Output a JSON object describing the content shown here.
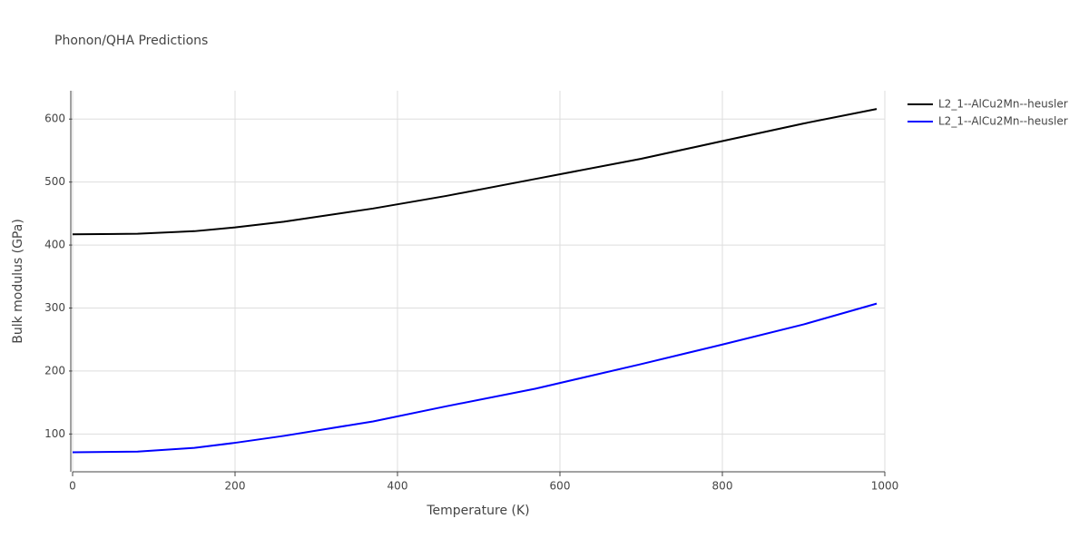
{
  "chart_data": {
    "type": "line",
    "title": "Phonon/QHA Predictions",
    "x_label": "Temperature (K)",
    "y_label": "Bulk modulus (GPa)",
    "x": [
      0,
      80,
      150,
      200,
      260,
      370,
      460,
      570,
      700,
      800,
      900,
      990
    ],
    "series": [
      {
        "name": "L2_1--AlCu2Mn--heusler",
        "color": "#000000",
        "values": [
          417,
          418,
          422,
          428,
          437,
          458,
          478,
          505,
          537,
          565,
          593,
          616
        ]
      },
      {
        "name": "L2_1--AlCu2Mn--heusler",
        "color": "#0000ff",
        "values": [
          71,
          72,
          78,
          86,
          97,
          120,
          144,
          172,
          211,
          242,
          274,
          307
        ]
      }
    ],
    "xlim": [
      0,
      1000
    ],
    "xticks": [
      0,
      200,
      400,
      600,
      800,
      1000
    ],
    "ylim": [
      40,
      645
    ],
    "yticks": [
      100,
      200,
      300,
      400,
      500,
      600
    ],
    "grid": true,
    "legend": "top-right"
  }
}
